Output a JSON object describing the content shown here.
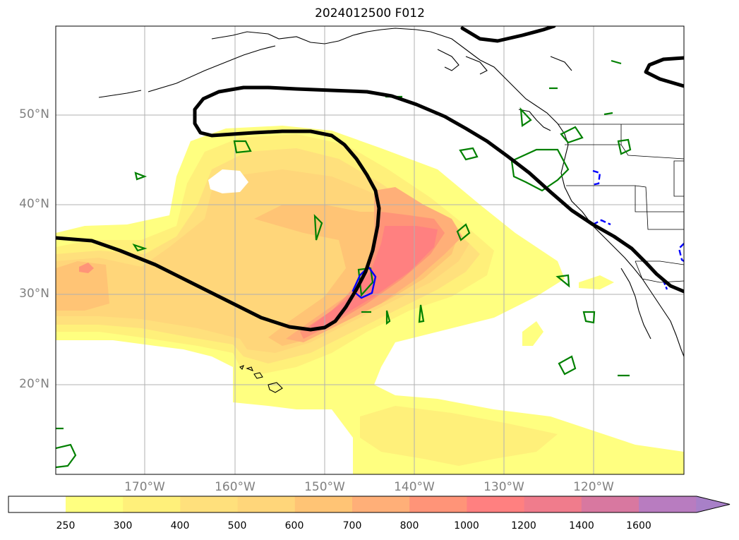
{
  "title": "2024012500 F012",
  "lat_labels": [
    "50°N",
    "40°N",
    "30°N",
    "20°N"
  ],
  "lon_labels": [
    "170°W",
    "160°W",
    "150°W",
    "140°W",
    "130°W",
    "120°W"
  ],
  "colorbar": {
    "levels": [
      "250",
      "300",
      "400",
      "500",
      "600",
      "700",
      "800",
      "1000",
      "1200",
      "1400",
      "1600"
    ],
    "colors": [
      "#ffff80",
      "#fff07a",
      "#ffe07c",
      "#ffd67a",
      "#ffc475",
      "#ffaf78",
      "#ff9478",
      "#ff8080",
      "#f07c8c",
      "#d878a0",
      "#b87cc0",
      "#a880c8"
    ],
    "extend": "max"
  },
  "colors": {
    "contour_black": "#000000",
    "contour_green": "#008000",
    "contour_blue": "#0000ff",
    "grid": "#b0b0b0",
    "coast": "#000000"
  }
}
